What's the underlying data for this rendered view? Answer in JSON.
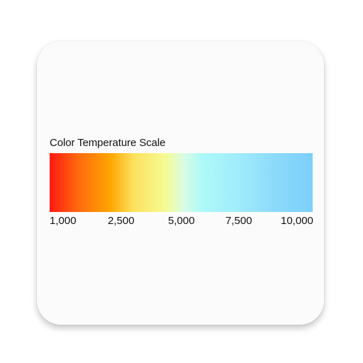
{
  "title": "Color Temperature Scale",
  "scale": {
    "gradient_colors": [
      "#ff1a14",
      "#ff6a0e",
      "#ffa500",
      "#fde15e",
      "#f5fb93",
      "#d8fce4",
      "#adf9f8",
      "#a2eefb",
      "#8ddbfb",
      "#7ccffb"
    ],
    "ticks": [
      "1,000",
      "2,500",
      "5,000",
      "7,500",
      "10,000"
    ]
  },
  "colors": {
    "card_background": "#fbfbfb",
    "text": "#111111"
  }
}
